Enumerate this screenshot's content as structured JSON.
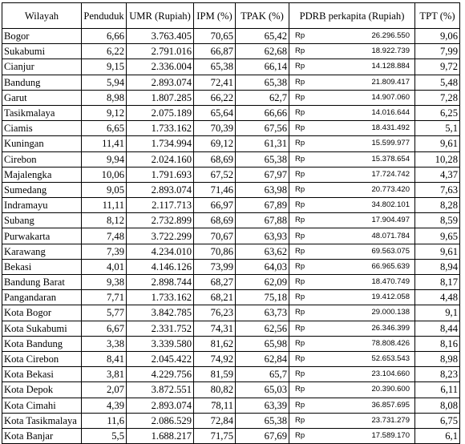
{
  "headers": {
    "wilayah": "Wilayah",
    "penduduk": "Penduduk",
    "umr": "UMR (Rupiah)",
    "ipm": "IPM (%)",
    "tpak": "TPAK (%)",
    "pdrb": "PDRB perkapita (Rupiah)",
    "tpt": "TPT (%)"
  },
  "currency": "Rp",
  "rows": [
    {
      "wilayah": "Bogor",
      "penduduk": "6,66",
      "umr": "3.763.405",
      "ipm": "70,65",
      "tpak": "65,42",
      "pdrb": "26.296.550",
      "tpt": "9,06"
    },
    {
      "wilayah": "Sukabumi",
      "penduduk": "6,22",
      "umr": "2.791.016",
      "ipm": "66,87",
      "tpak": "62,68",
      "pdrb": "18.922.739",
      "tpt": "7,99"
    },
    {
      "wilayah": "Cianjur",
      "penduduk": "9,15",
      "umr": "2.336.004",
      "ipm": "65,38",
      "tpak": "66,14",
      "pdrb": "14.128.884",
      "tpt": "9,72"
    },
    {
      "wilayah": "Bandung",
      "penduduk": "5,94",
      "umr": "2.893.074",
      "ipm": "72,41",
      "tpak": "65,38",
      "pdrb": "21.809.417",
      "tpt": "5,48"
    },
    {
      "wilayah": "Garut",
      "penduduk": "8,98",
      "umr": "1.807.285",
      "ipm": "66,22",
      "tpak": "62,7",
      "pdrb": "14.907.060",
      "tpt": "7,28"
    },
    {
      "wilayah": "Tasikmalaya",
      "penduduk": "9,12",
      "umr": "2.075.189",
      "ipm": "65,64",
      "tpak": "66,66",
      "pdrb": "14.016.644",
      "tpt": "6,25"
    },
    {
      "wilayah": "Ciamis",
      "penduduk": "6,65",
      "umr": "1.733.162",
      "ipm": "70,39",
      "tpak": "67,56",
      "pdrb": "18.431.492",
      "tpt": "5,1"
    },
    {
      "wilayah": "Kuningan",
      "penduduk": "11,41",
      "umr": "1.734.994",
      "ipm": "69,12",
      "tpak": "61,31",
      "pdrb": "15.599.977",
      "tpt": "9,61"
    },
    {
      "wilayah": "Cirebon",
      "penduduk": "9,94",
      "umr": "2.024.160",
      "ipm": "68,69",
      "tpak": "65,38",
      "pdrb": "15.378.654",
      "tpt": "10,28"
    },
    {
      "wilayah": "Majalengka",
      "penduduk": "10,06",
      "umr": "1.791.693",
      "ipm": "67,52",
      "tpak": "67,97",
      "pdrb": "17.724.742",
      "tpt": "4,37"
    },
    {
      "wilayah": "Sumedang",
      "penduduk": "9,05",
      "umr": "2.893.074",
      "ipm": "71,46",
      "tpak": "63,98",
      "pdrb": "20.773.420",
      "tpt": "7,63"
    },
    {
      "wilayah": "Indramayu",
      "penduduk": "11,11",
      "umr": "2.117.713",
      "ipm": "66,97",
      "tpak": "67,89",
      "pdrb": "34.802.101",
      "tpt": "8,28"
    },
    {
      "wilayah": "Subang",
      "penduduk": "8,12",
      "umr": "2.732.899",
      "ipm": "68,69",
      "tpak": "67,88",
      "pdrb": "17.904.497",
      "tpt": "8,59"
    },
    {
      "wilayah": "Purwakarta",
      "penduduk": "7,48",
      "umr": "3.722.299",
      "ipm": "70,67",
      "tpak": "63,93",
      "pdrb": "48.071.784",
      "tpt": "9,65"
    },
    {
      "wilayah": "Karawang",
      "penduduk": "7,39",
      "umr": "4.234.010",
      "ipm": "70,86",
      "tpak": "63,62",
      "pdrb": "69.563.075",
      "tpt": "9,61"
    },
    {
      "wilayah": "Bekasi",
      "penduduk": "4,01",
      "umr": "4.146.126",
      "ipm": "73,99",
      "tpak": "64,03",
      "pdrb": "66.965.639",
      "tpt": "8,94"
    },
    {
      "wilayah": "Bandung Barat",
      "penduduk": "9,38",
      "umr": "2.898.744",
      "ipm": "68,27",
      "tpak": "62,09",
      "pdrb": "18.470.749",
      "tpt": "8,17"
    },
    {
      "wilayah": "Pangandaran",
      "penduduk": "7,71",
      "umr": "1.733.162",
      "ipm": "68,21",
      "tpak": "75,18",
      "pdrb": "19.412.058",
      "tpt": "4,48"
    },
    {
      "wilayah": "Kota Bogor",
      "penduduk": "5,77",
      "umr": "3.842.785",
      "ipm": "76,23",
      "tpak": "63,73",
      "pdrb": "29.000.138",
      "tpt": "9,1"
    },
    {
      "wilayah": "Kota Sukabumi",
      "penduduk": "6,67",
      "umr": "2.331.752",
      "ipm": "74,31",
      "tpak": "62,56",
      "pdrb": "26.346.399",
      "tpt": "8,44"
    },
    {
      "wilayah": "Kota Bandung",
      "penduduk": "3,38",
      "umr": "3.339.580",
      "ipm": "81,62",
      "tpak": "65,98",
      "pdrb": "78.808.426",
      "tpt": "8,16"
    },
    {
      "wilayah": "Kota Cirebon",
      "penduduk": "8,41",
      "umr": "2.045.422",
      "ipm": "74,92",
      "tpak": "62,84",
      "pdrb": "52.653.543",
      "tpt": "8,98"
    },
    {
      "wilayah": "Kota Bekasi",
      "penduduk": "3,81",
      "umr": "4.229.756",
      "ipm": "81,59",
      "tpak": "65,7",
      "pdrb": "23.104.660",
      "tpt": "8,23"
    },
    {
      "wilayah": "Kota Depok",
      "penduduk": "2,07",
      "umr": "3.872.551",
      "ipm": "80,82",
      "tpak": "65,03",
      "pdrb": "20.390.600",
      "tpt": "6,11"
    },
    {
      "wilayah": "Kota Cimahi",
      "penduduk": "4,39",
      "umr": "2.893.074",
      "ipm": "78,11",
      "tpak": "63,39",
      "pdrb": "36.857.695",
      "tpt": "8,08"
    },
    {
      "wilayah": "Kota Tasikmalaya",
      "penduduk": "11,6",
      "umr": "2.086.529",
      "ipm": "72,84",
      "tpak": "65,38",
      "pdrb": "23.731.279",
      "tpt": "6,75"
    },
    {
      "wilayah": "Kota Banjar",
      "penduduk": "5,5",
      "umr": "1.688.217",
      "ipm": "71,75",
      "tpak": "67,69",
      "pdrb": "17.589.170",
      "tpt": "6,1"
    }
  ]
}
